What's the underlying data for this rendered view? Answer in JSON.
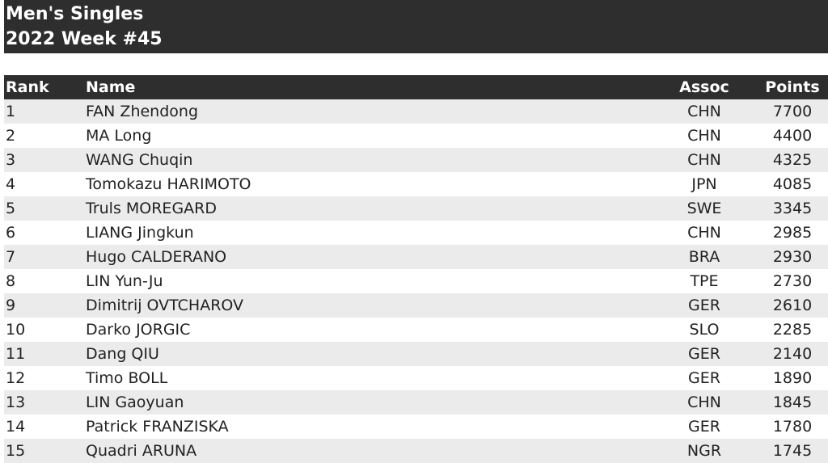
{
  "header": {
    "title": "Men's Singles",
    "subtitle": "2022 Week #45"
  },
  "table": {
    "columns": [
      "Rank",
      "Name",
      "Assoc",
      "Points"
    ],
    "rows": [
      [
        1,
        "FAN Zhendong",
        "CHN",
        7700
      ],
      [
        2,
        "MA Long",
        "CHN",
        4400
      ],
      [
        3,
        "WANG Chuqin",
        "CHN",
        4325
      ],
      [
        4,
        "Tomokazu HARIMOTO",
        "JPN",
        4085
      ],
      [
        5,
        "Truls MOREGARD",
        "SWE",
        3345
      ],
      [
        6,
        "LIANG Jingkun",
        "CHN",
        2985
      ],
      [
        7,
        "Hugo CALDERANO",
        "BRA",
        2930
      ],
      [
        8,
        "LIN Yun-Ju",
        "TPE",
        2730
      ],
      [
        9,
        "Dimitrij OVTCHAROV",
        "GER",
        2610
      ],
      [
        10,
        "Darko JORGIC",
        "SLO",
        2285
      ],
      [
        11,
        "Dang QIU",
        "GER",
        2140
      ],
      [
        12,
        "Timo BOLL",
        "GER",
        1890
      ],
      [
        13,
        "LIN Gaoyuan",
        "CHN",
        1845
      ],
      [
        14,
        "Patrick FRANZISKA",
        "GER",
        1780
      ],
      [
        15,
        "Quadri ARUNA",
        "NGR",
        1745
      ]
    ]
  }
}
